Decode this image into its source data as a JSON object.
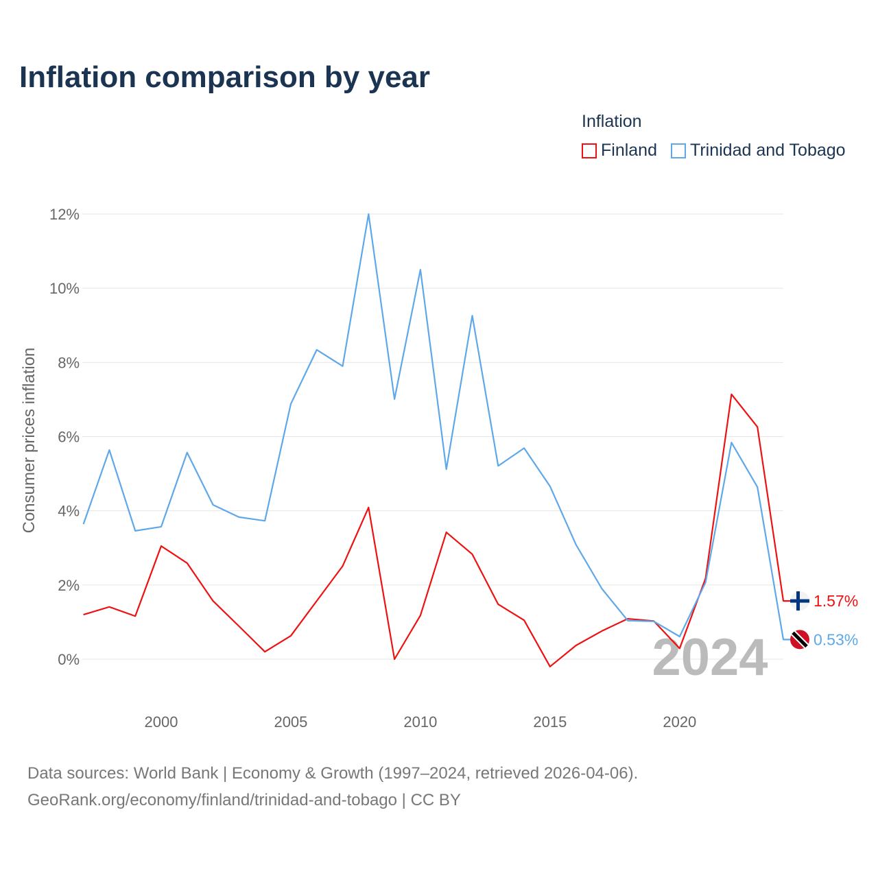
{
  "title": "Inflation comparison by year",
  "legend_title": "Inflation",
  "source_line1": "Data sources: World Bank | Economy & Growth (1997–2024, retrieved 2026-04-06).",
  "source_line2": "GeoRank.org/economy/finland/trinidad-and-tobago | CC BY",
  "watermark_year": "2024",
  "chart_data": {
    "type": "line",
    "title": "Inflation comparison by year",
    "xlabel": "",
    "ylabel": "Consumer prices inflation",
    "x": [
      1997,
      1998,
      1999,
      2000,
      2001,
      2002,
      2003,
      2004,
      2005,
      2006,
      2007,
      2008,
      2009,
      2010,
      2011,
      2012,
      2013,
      2014,
      2015,
      2016,
      2017,
      2018,
      2019,
      2020,
      2021,
      2022,
      2023,
      2024
    ],
    "xlim": [
      1997,
      2024
    ],
    "ylim": [
      -1.5,
      12.5
    ],
    "x_ticks": [
      2000,
      2005,
      2010,
      2015,
      2020
    ],
    "y_ticks": [
      0,
      2,
      4,
      6,
      8,
      10,
      12
    ],
    "y_tick_labels": [
      "0%",
      "2%",
      "4%",
      "6%",
      "8%",
      "10%",
      "12%"
    ],
    "grid": true,
    "legend_position": "top-right",
    "series": [
      {
        "name": "Finland",
        "color": "#ee1111",
        "end_label": "1.57%",
        "values": [
          1.2,
          1.41,
          1.16,
          3.05,
          2.59,
          1.57,
          0.89,
          0.2,
          0.63,
          1.57,
          2.51,
          4.09,
          0.0,
          1.18,
          3.42,
          2.83,
          1.48,
          1.05,
          -0.2,
          0.37,
          0.76,
          1.09,
          1.03,
          0.29,
          2.18,
          7.14,
          6.26,
          1.57
        ]
      },
      {
        "name": "Trinidad and Tobago",
        "color": "#5ea8ea",
        "end_label": "0.53%",
        "values": [
          3.64,
          5.64,
          3.46,
          3.57,
          5.57,
          4.16,
          3.83,
          3.73,
          6.88,
          8.34,
          7.9,
          12.0,
          7.01,
          10.5,
          5.12,
          9.26,
          5.21,
          5.69,
          4.66,
          3.09,
          1.9,
          1.04,
          1.02,
          0.61,
          2.07,
          5.84,
          4.64,
          0.53
        ]
      }
    ]
  }
}
